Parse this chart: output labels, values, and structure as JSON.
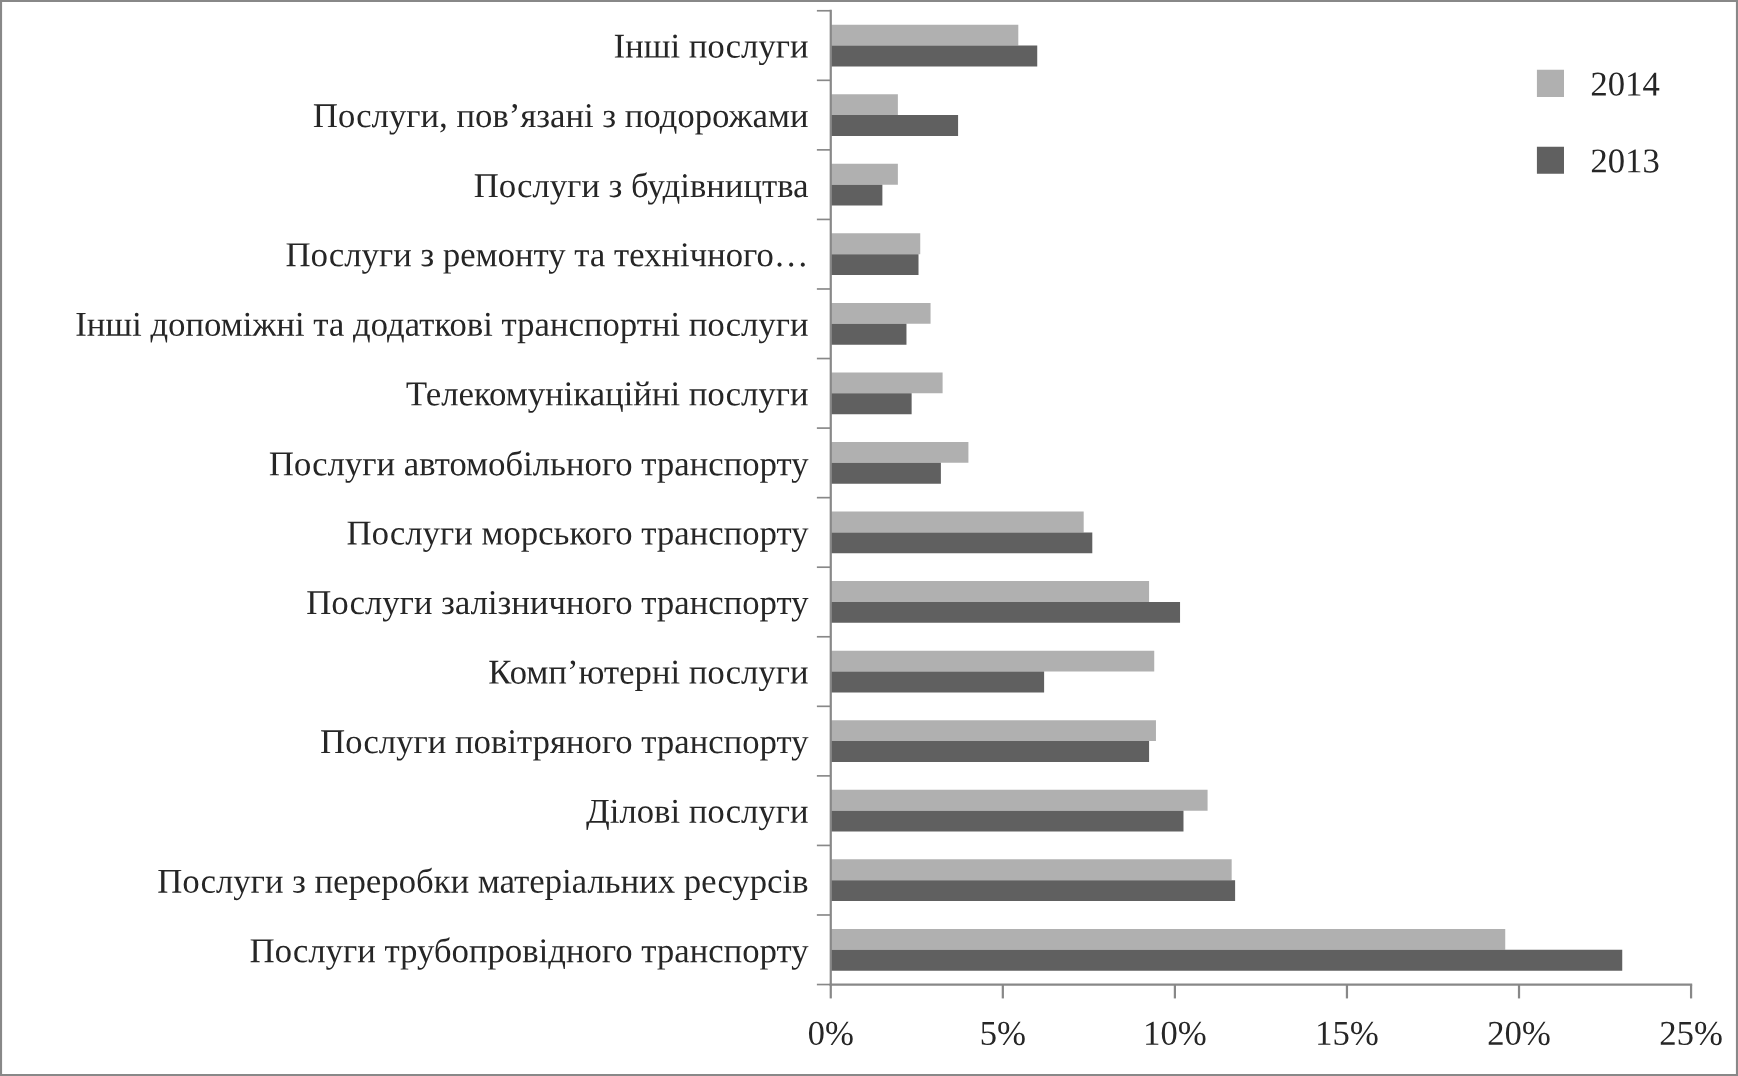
{
  "chart_data": {
    "type": "bar",
    "orientation": "horizontal",
    "categories": [
      "Інші послуги",
      "Послуги, пов’язані з подорожами",
      "Послуги з будівництва",
      "Послуги з ремонту та технічного…",
      "Інші допоміжні та додаткові транспортні послуги",
      "Телекомунікаційні послуги",
      "Послуги автомобільного транспорту",
      "Послуги морського транспорту",
      "Послуги залізничного транспорту",
      "Комп’ютерні послуги",
      "Послуги повітряного транспорту",
      "Ділові послуги",
      "Послуги з переробки матеріальних ресурсів",
      "Послуги трубопровідного транспорту"
    ],
    "series": [
      {
        "name": "2014",
        "color": "#b0b0b0",
        "values": [
          5.45,
          1.95,
          1.95,
          2.6,
          2.9,
          3.25,
          4.0,
          7.35,
          9.25,
          9.4,
          9.45,
          10.95,
          11.65,
          19.6
        ]
      },
      {
        "name": "2013",
        "color": "#606060",
        "values": [
          6.0,
          3.7,
          1.5,
          2.55,
          2.2,
          2.35,
          3.2,
          7.6,
          10.15,
          6.2,
          9.25,
          10.25,
          11.75,
          23.0
        ]
      }
    ],
    "xlim": [
      0,
      25
    ],
    "xticks": [
      {
        "value": 0,
        "label": "0%"
      },
      {
        "value": 5,
        "label": "5%"
      },
      {
        "value": 10,
        "label": "10%"
      },
      {
        "value": 15,
        "label": "15%"
      },
      {
        "value": 20,
        "label": "20%"
      },
      {
        "value": 25,
        "label": "25%"
      }
    ],
    "grid": false,
    "legend": "top right"
  }
}
